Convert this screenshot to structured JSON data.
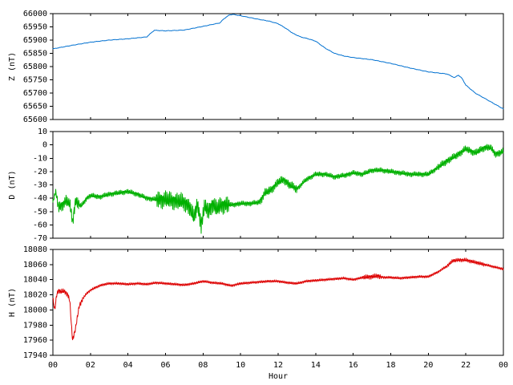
{
  "chart_data": [
    {
      "type": "line",
      "panel": "top",
      "ylabel": "Z (nT)",
      "xlabel": "",
      "ylim": [
        65600,
        66000
      ],
      "yticks": [
        65600,
        65650,
        65700,
        65750,
        65800,
        65850,
        65900,
        65950,
        66000
      ],
      "xticks": [
        "00",
        "02",
        "04",
        "06",
        "08",
        "10",
        "12",
        "14",
        "16",
        "18",
        "20",
        "22",
        "00"
      ],
      "series": [
        {
          "color": "#0070d0",
          "x": [
            0,
            1,
            2,
            3,
            4,
            5,
            5.2,
            5.4,
            6,
            7,
            8,
            8.9,
            9.1,
            9.4,
            9.6,
            10,
            10.5,
            11,
            11.5,
            12,
            12.4,
            12.8,
            13.2,
            13.6,
            14,
            14.5,
            15,
            15.5,
            16,
            17,
            18,
            19,
            20,
            21,
            21.2,
            21.4,
            21.6,
            21.8,
            22,
            22.5,
            23,
            23.5,
            24
          ],
          "values": [
            65867,
            65880,
            65892,
            65900,
            65905,
            65912,
            65925,
            65937,
            65935,
            65938,
            65952,
            65965,
            65980,
            65995,
            65997,
            65992,
            65985,
            65978,
            65972,
            65962,
            65945,
            65925,
            65912,
            65905,
            65896,
            65870,
            65850,
            65840,
            65834,
            65826,
            65812,
            65795,
            65780,
            65772,
            65765,
            65758,
            65768,
            65755,
            65730,
            65700,
            65680,
            65660,
            65640
          ]
        }
      ]
    },
    {
      "type": "line",
      "panel": "middle",
      "ylabel": "D (nT)",
      "xlabel": "",
      "ylim": [
        -70,
        10
      ],
      "yticks": [
        -70,
        -60,
        -50,
        -40,
        -30,
        -20,
        -10,
        0,
        10
      ],
      "xticks": [
        "00",
        "02",
        "04",
        "06",
        "08",
        "10",
        "12",
        "14",
        "16",
        "18",
        "20",
        "22",
        "00"
      ],
      "series": [
        {
          "color": "#00b000",
          "x": [
            0,
            0.15,
            0.3,
            0.5,
            0.7,
            0.9,
            1.05,
            1.2,
            1.5,
            1.8,
            2,
            2.5,
            3,
            3.5,
            4,
            4.5,
            5,
            5.5,
            6,
            6.5,
            7,
            7.3,
            7.5,
            7.7,
            7.9,
            8.1,
            8.3,
            8.5,
            8.7,
            9,
            9.5,
            10,
            10.5,
            11,
            11.3,
            11.6,
            12,
            12.3,
            12.6,
            13,
            13.5,
            14,
            14.5,
            15,
            15.5,
            16,
            16.5,
            17,
            17.5,
            18,
            18.5,
            19,
            19.5,
            20,
            20.5,
            21,
            21.5,
            22,
            22.5,
            23,
            23.3,
            23.6,
            24
          ],
          "values": [
            -43,
            -35,
            -47,
            -45,
            -42,
            -44,
            -58,
            -42,
            -46,
            -40,
            -38,
            -39,
            -37,
            -36,
            -35,
            -37,
            -40,
            -41,
            -41,
            -42,
            -43,
            -47,
            -55,
            -44,
            -60,
            -46,
            -50,
            -44,
            -48,
            -45,
            -45,
            -44,
            -44,
            -43,
            -36,
            -34,
            -28,
            -26,
            -30,
            -33,
            -26,
            -22,
            -22,
            -24,
            -23,
            -21,
            -22,
            -19,
            -19,
            -20,
            -21,
            -22,
            -22,
            -22,
            -17,
            -12,
            -8,
            -3,
            -6,
            -2,
            -2,
            -7,
            -5
          ]
        }
      ]
    },
    {
      "type": "line",
      "panel": "bottom",
      "ylabel": "H (nT)",
      "xlabel": "Hour",
      "ylim": [
        17940,
        18080
      ],
      "yticks": [
        17940,
        17960,
        17980,
        18000,
        18020,
        18040,
        18060,
        18080
      ],
      "xticks": [
        "00",
        "02",
        "04",
        "06",
        "08",
        "10",
        "12",
        "14",
        "16",
        "18",
        "20",
        "22",
        "00"
      ],
      "series": [
        {
          "color": "#dd0000",
          "x": [
            0,
            0.1,
            0.2,
            0.3,
            0.4,
            0.6,
            0.8,
            0.9,
            1.0,
            1.05,
            1.2,
            1.4,
            1.6,
            1.8,
            2.0,
            2.3,
            2.6,
            3.0,
            3.5,
            4.0,
            4.5,
            5.0,
            5.5,
            6.0,
            6.5,
            7.0,
            7.5,
            8.0,
            8.5,
            9.0,
            9.5,
            10.0,
            10.5,
            11.0,
            11.5,
            12.0,
            12.5,
            13.0,
            13.5,
            14.0,
            14.5,
            15.0,
            15.5,
            16.0,
            16.5,
            17.0,
            17.3,
            17.6,
            18.0,
            18.5,
            19.0,
            19.5,
            20.0,
            20.5,
            21.0,
            21.3,
            21.6,
            22.0,
            22.5,
            23.0,
            23.5,
            24.0
          ],
          "values": [
            18015,
            18000,
            18020,
            18026,
            18024,
            18025,
            18020,
            18012,
            17975,
            17960,
            17975,
            18005,
            18015,
            18022,
            18026,
            18030,
            18033,
            18035,
            18035,
            18034,
            18035,
            18034,
            18036,
            18035,
            18034,
            18033,
            18035,
            18038,
            18036,
            18035,
            18032,
            18035,
            18036,
            18037,
            18038,
            18038,
            18036,
            18035,
            18038,
            18039,
            18040,
            18041,
            18042,
            18040,
            18043,
            18044,
            18045,
            18043,
            18043,
            18042,
            18043,
            18044,
            18044,
            18050,
            18058,
            18065,
            18066,
            18066,
            18063,
            18060,
            18057,
            18054
          ]
        }
      ]
    }
  ]
}
